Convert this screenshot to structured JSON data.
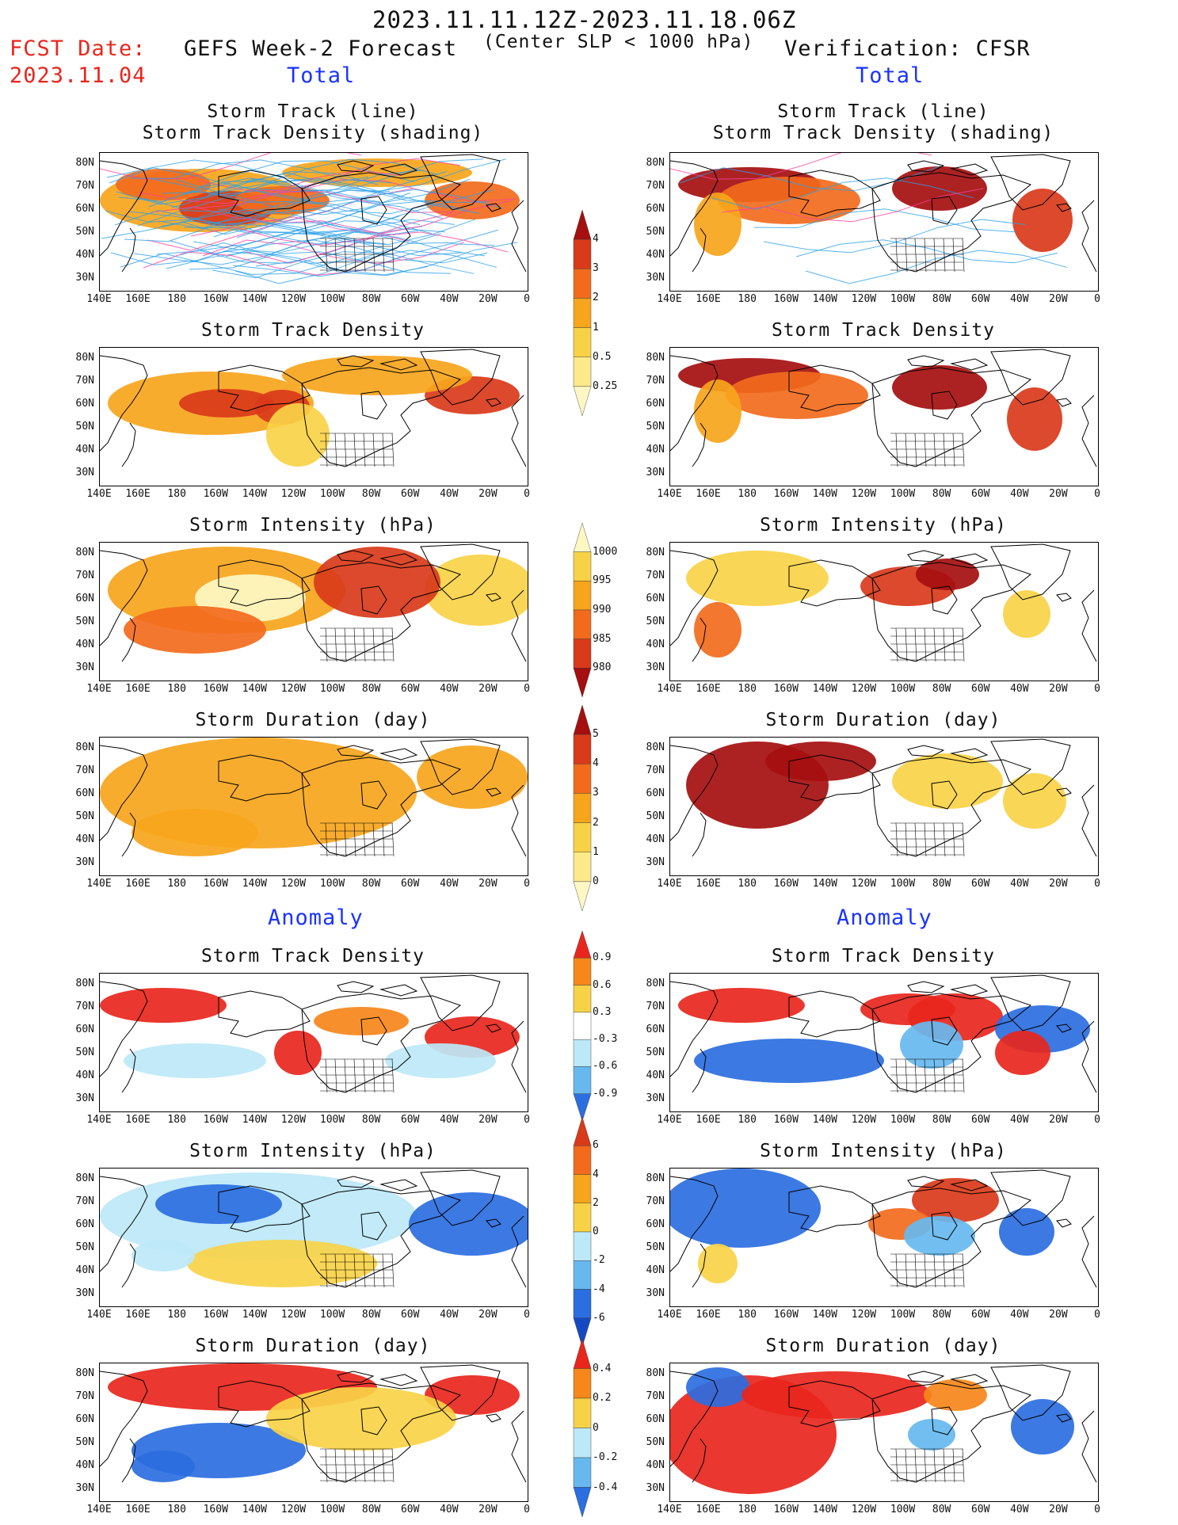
{
  "header": {
    "date_range": "2023.11.11.12Z-2023.11.18.06Z",
    "criterion": "(Center SLP < 1000 hPa)",
    "fcst_label": "FCST Date:",
    "fcst_date": "2023.11.04",
    "left_model": "GEFS Week-2 Forecast",
    "right_model": "Verification: CFSR",
    "section_total": "Total",
    "section_anomaly": "Anomaly"
  },
  "titles": {
    "track_line": "Storm Track (line)",
    "track_density_shading": "Storm Track Density (shading)",
    "track_density": "Storm Track Density",
    "intensity": "Storm Intensity (hPa)",
    "duration": "Storm Duration (day)"
  },
  "axes": {
    "lat_labels": [
      "80N",
      "70N",
      "60N",
      "50N",
      "40N",
      "30N"
    ],
    "lon_labels": [
      "140E",
      "160E",
      "180",
      "160W",
      "140W",
      "120W",
      "100W",
      "80W",
      "60W",
      "40W",
      "20W",
      "0"
    ]
  },
  "colorbars": {
    "density_total": {
      "labels": [
        "4",
        "3",
        "2",
        "1",
        "0.5",
        "0.25"
      ],
      "colors": [
        "#a50f0f",
        "#d93a1a",
        "#f26b1d",
        "#f7a51c",
        "#f8d246",
        "#fbe98a",
        "#fdf7c4"
      ]
    },
    "intensity_total": {
      "labels": [
        "1000",
        "995",
        "990",
        "985",
        "980"
      ],
      "colors": [
        "#fdf7c4",
        "#f8d246",
        "#f7a51c",
        "#f26b1d",
        "#d93a1a",
        "#a50f0f"
      ]
    },
    "duration_total": {
      "labels": [
        "5",
        "4",
        "3",
        "2",
        "1",
        "0"
      ],
      "colors": [
        "#a50f0f",
        "#d93a1a",
        "#f26b1d",
        "#f7a51c",
        "#f8d246",
        "#fbe98a",
        "#fdf7c4"
      ]
    },
    "density_anom": {
      "labels": [
        "0.9",
        "0.6",
        "0.3",
        "-0.3",
        "-0.6",
        "-0.9"
      ],
      "colors": [
        "#e8261d",
        "#f6871a",
        "#f8d246",
        "#ffffff",
        "#bde8f7",
        "#67b8ef",
        "#2b6ee0"
      ]
    },
    "intensity_anom": {
      "labels": [
        "6",
        "4",
        "2",
        "0",
        "-2",
        "-4",
        "-6"
      ],
      "colors": [
        "#d93a1a",
        "#f26b1d",
        "#f7a51c",
        "#f8d246",
        "#bde8f7",
        "#67b8ef",
        "#2b6ee0",
        "#1549c2"
      ]
    },
    "duration_anom": {
      "labels": [
        "0.4",
        "0.2",
        "0",
        "-0.2",
        "-0.4"
      ],
      "colors": [
        "#e8261d",
        "#f6871a",
        "#f8d246",
        "#bde8f7",
        "#67b8ef",
        "#2b6ee0"
      ]
    }
  }
}
